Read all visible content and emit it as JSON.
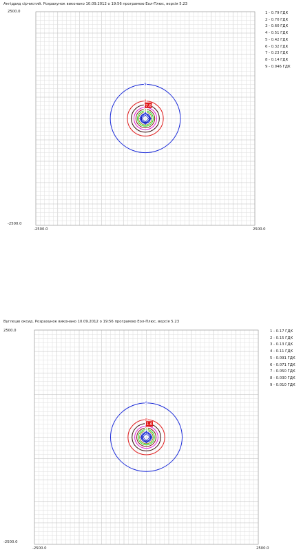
{
  "chart_data": [
    {
      "type": "contour",
      "title": "Ангідрид сірчистий. Розрахунок виконано 10.09.2012 о 19:56 програмою Еол-Плюс, версія 5.23",
      "x_range": [
        -2500.0,
        2500.0
      ],
      "y_range": [
        -2500.0,
        2500.0
      ],
      "tick_labels": {
        "x_min": "-2500.0",
        "x_max": "2500.0",
        "y_max": "2500.0",
        "y_min": "-2500.0"
      },
      "grid": true,
      "legend_position": "right",
      "levels": [
        {
          "id": "1",
          "label": "1 - 0.79 ГДК",
          "value": 0.79,
          "radius": 90,
          "color": "#1a1a80"
        },
        {
          "id": "2",
          "label": "2 - 0.70 ГДК",
          "value": 0.7,
          "radius": 115,
          "color": "#1a2ad8"
        },
        {
          "id": "3",
          "label": "3 - 0.60 ГДК",
          "value": 0.6,
          "radius": 150,
          "color": "#8c8c1a"
        },
        {
          "id": "4",
          "label": "4 - 0.51 ГДК",
          "value": 0.51,
          "radius": 180,
          "color": "#1fe01f"
        },
        {
          "id": "5",
          "label": "5 - 0.42 ГДК",
          "value": 0.42,
          "radius": 215,
          "color": "#8a1a1a"
        },
        {
          "id": "6",
          "label": "6 - 0.32 ГДК",
          "value": 0.32,
          "radius": 260,
          "color": "#e01fd8"
        },
        {
          "id": "7",
          "label": "7 - 0.23 ГДК",
          "value": 0.23,
          "radius": 320,
          "color": "#3a0a0a"
        },
        {
          "id": "8",
          "label": "8 - 0.14 ГДК",
          "value": 0.14,
          "radius": 410,
          "color": "#e01a1a"
        },
        {
          "id": "9",
          "label": "9 - 0.046 ГДК",
          "value": 0.046,
          "radius": 800,
          "color": "#1a2ad8"
        }
      ],
      "peak_label": "7.6"
    },
    {
      "type": "contour",
      "title": "Вуглецю оксид. Розрахунок виконано 10.09.2012 о 19:56 програмою Еол-Плюс, версія 5.23",
      "x_range": [
        -2500.0,
        2500.0
      ],
      "y_range": [
        -2500.0,
        2500.0
      ],
      "tick_labels": {
        "x_min": "-2500.0",
        "x_max": "2500.0",
        "y_max": "2500.0",
        "y_min": "-2500.0"
      },
      "grid": true,
      "legend_position": "right",
      "levels": [
        {
          "id": "1",
          "label": "1 - 0.17 ГДК",
          "value": 0.17,
          "radius": 90,
          "color": "#1a1a80"
        },
        {
          "id": "2",
          "label": "2 - 0.15 ГДК",
          "value": 0.15,
          "radius": 115,
          "color": "#1a2ad8"
        },
        {
          "id": "3",
          "label": "3 - 0.13 ГДК",
          "value": 0.13,
          "radius": 150,
          "color": "#8c8c1a"
        },
        {
          "id": "4",
          "label": "4 - 0.11 ГДК",
          "value": 0.11,
          "radius": 180,
          "color": "#1fe01f"
        },
        {
          "id": "5",
          "label": "5 - 0.091 ГДК",
          "value": 0.091,
          "radius": 215,
          "color": "#8a1a1a"
        },
        {
          "id": "6",
          "label": "6 - 0.071 ГДК",
          "value": 0.071,
          "radius": 260,
          "color": "#e01fd8"
        },
        {
          "id": "7",
          "label": "7 - 0.050 ГДК",
          "value": 0.05,
          "radius": 320,
          "color": "#3a0a0a"
        },
        {
          "id": "8",
          "label": "8 - 0.030 ГДК",
          "value": 0.03,
          "radius": 410,
          "color": "#e01a1a"
        },
        {
          "id": "9",
          "label": "9 - 0.010 ГДК",
          "value": 0.01,
          "radius": 800,
          "color": "#1a2ad8"
        }
      ],
      "peak_label": "1.6"
    }
  ]
}
